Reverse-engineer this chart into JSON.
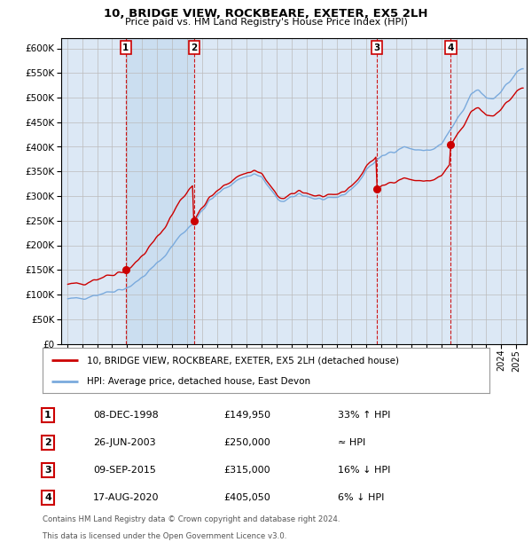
{
  "title1": "10, BRIDGE VIEW, ROCKBEARE, EXETER, EX5 2LH",
  "title2": "Price paid vs. HM Land Registry's House Price Index (HPI)",
  "legend_property": "10, BRIDGE VIEW, ROCKBEARE, EXETER, EX5 2LH (detached house)",
  "legend_hpi": "HPI: Average price, detached house, East Devon",
  "footer1": "Contains HM Land Registry data © Crown copyright and database right 2024.",
  "footer2": "This data is licensed under the Open Government Licence v3.0.",
  "sales": [
    {
      "num": 1,
      "date": "08-DEC-1998",
      "price": 149950,
      "label": "33% ↑ HPI",
      "year": 1998.92
    },
    {
      "num": 2,
      "date": "26-JUN-2003",
      "price": 250000,
      "label": "≈ HPI",
      "year": 2003.49
    },
    {
      "num": 3,
      "date": "09-SEP-2015",
      "price": 315000,
      "label": "16% ↓ HPI",
      "year": 2015.69
    },
    {
      "num": 4,
      "date": "17-AUG-2020",
      "price": 405050,
      "label": "6% ↓ HPI",
      "year": 2020.63
    }
  ],
  "ylim": [
    0,
    620000
  ],
  "yticks": [
    0,
    50000,
    100000,
    150000,
    200000,
    250000,
    300000,
    350000,
    400000,
    450000,
    500000,
    550000,
    600000
  ],
  "color_property": "#cc0000",
  "color_hpi": "#7aaadd",
  "color_vline": "#cc0000",
  "bg_chart": "#dce8f5",
  "shade_color": "#c8ddf0"
}
